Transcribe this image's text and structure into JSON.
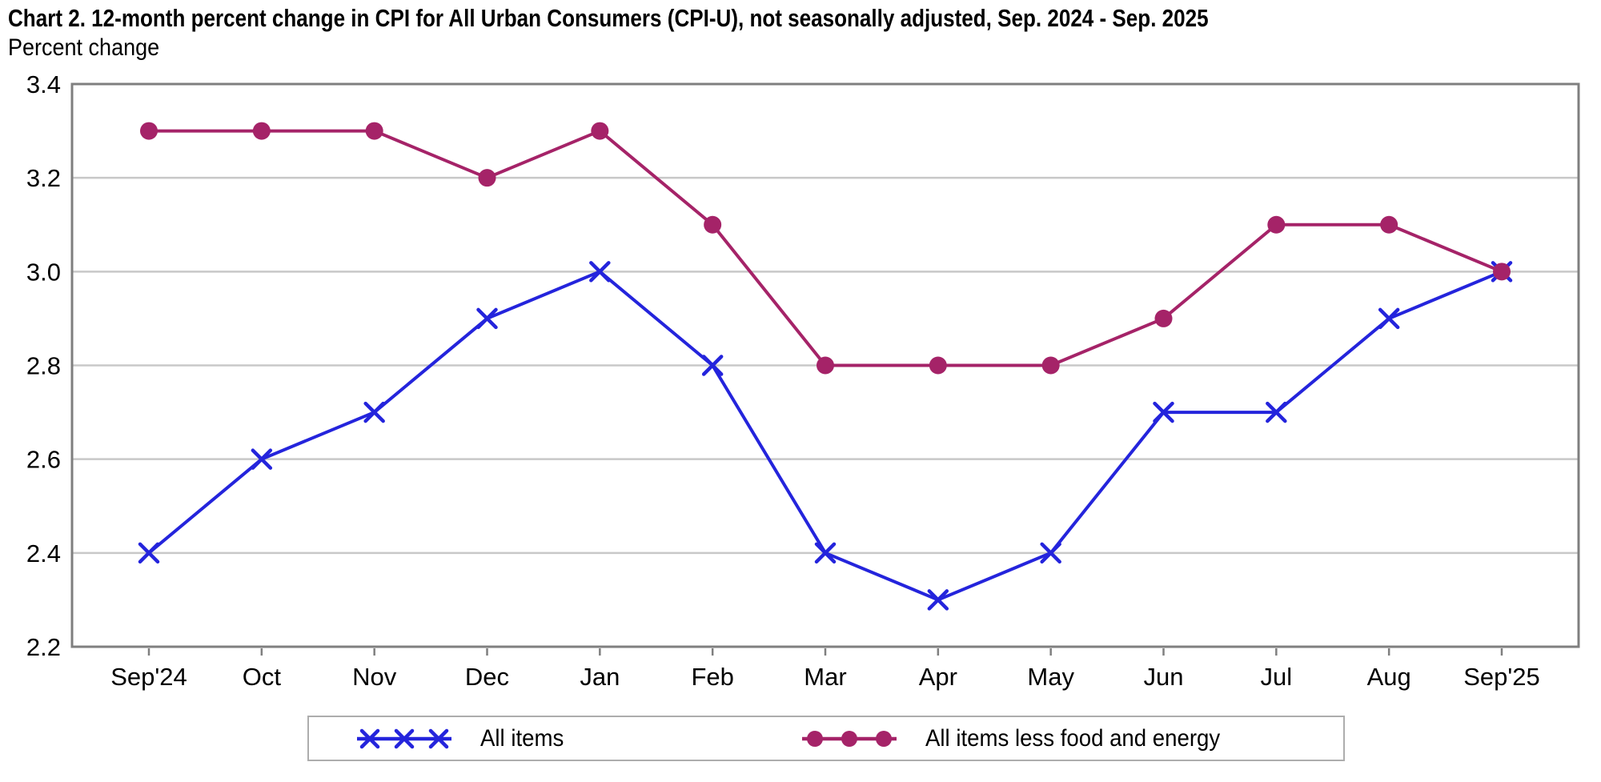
{
  "title": "Chart 2. 12-month percent change in CPI for All Urban Consumers (CPI-U), not seasonally adjusted, Sep. 2024 - Sep. 2025",
  "ylabel": "Percent change",
  "colors": {
    "all_items": "#2424dc",
    "core": "#a52368",
    "grid": "#c8c8c8",
    "frame": "#7f7f7f",
    "legend_border": "#adadad",
    "text": "#000000"
  },
  "chart_data": {
    "type": "line",
    "title": "Chart 2. 12-month percent change in CPI for All Urban Consumers (CPI-U), not seasonally adjusted, Sep. 2024 - Sep. 2025",
    "ylabel": "Percent change",
    "categories": [
      "Sep'24",
      "Oct",
      "Nov",
      "Dec",
      "Jan",
      "Feb",
      "Mar",
      "Apr",
      "May",
      "Jun",
      "Jul",
      "Aug",
      "Sep'25"
    ],
    "series": [
      {
        "id": "all-items",
        "name": "All items",
        "marker": "x",
        "color_key": "all_items",
        "values": [
          2.4,
          2.6,
          2.7,
          2.9,
          3.0,
          2.8,
          2.4,
          2.3,
          2.4,
          2.7,
          2.7,
          2.9,
          3.0
        ]
      },
      {
        "id": "core",
        "name": "All items less food and energy",
        "marker": "circle",
        "color_key": "core",
        "values": [
          3.3,
          3.3,
          3.3,
          3.2,
          3.3,
          3.1,
          2.8,
          2.8,
          2.8,
          2.9,
          3.1,
          3.1,
          3.0
        ]
      }
    ],
    "ylim": [
      2.2,
      3.4
    ],
    "yticks": [
      3.4,
      3.2,
      3.0,
      2.8,
      2.6,
      2.4,
      2.2
    ],
    "grid": "horizontal",
    "legend_position": "bottom"
  }
}
